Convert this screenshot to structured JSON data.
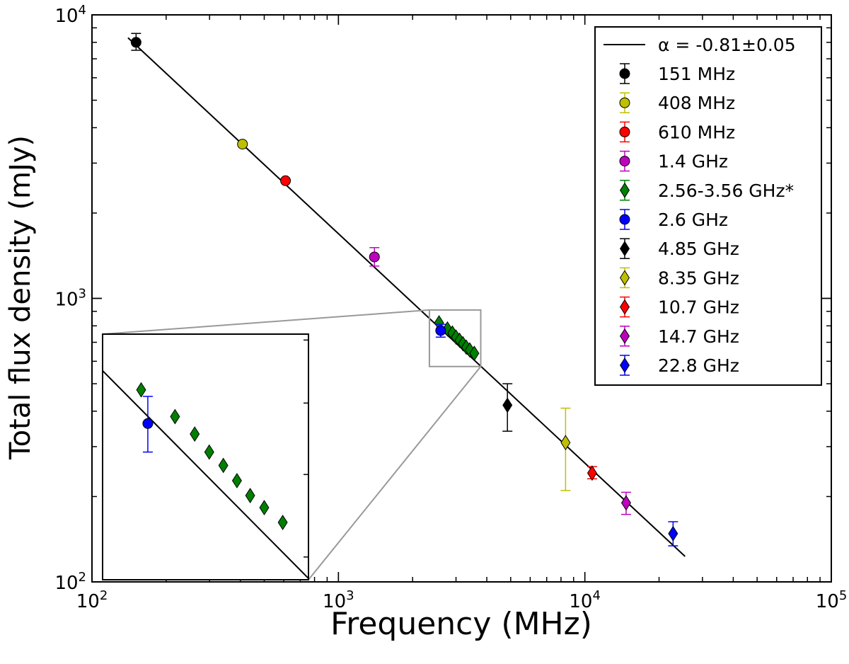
{
  "chart_data": {
    "type": "scatter",
    "xscale": "log",
    "yscale": "log",
    "xlabel": "Frequency (MHz)",
    "ylabel": "Total flux density (mJy)",
    "xlim": [
      100,
      100000
    ],
    "ylim": [
      100,
      10000
    ],
    "x_ticks": [
      {
        "value": 100,
        "base": "10",
        "exp": "2"
      },
      {
        "value": 1000,
        "base": "10",
        "exp": "3"
      },
      {
        "value": 10000,
        "base": "10",
        "exp": "4"
      },
      {
        "value": 100000,
        "base": "10",
        "exp": "5"
      }
    ],
    "y_ticks": [
      {
        "value": 100,
        "base": "10",
        "exp": "2"
      },
      {
        "value": 1000,
        "base": "10",
        "exp": "3"
      },
      {
        "value": 10000,
        "base": "10",
        "exp": "4"
      }
    ],
    "fit": {
      "label": "α = -0.81±0.05",
      "alpha": -0.81,
      "alpha_err": 0.05,
      "color": "#000000",
      "points": [
        [
          140,
          8300
        ],
        [
          25500,
          123
        ]
      ]
    },
    "series": [
      {
        "name": "151 MHz",
        "marker": "circle",
        "color": "#000000",
        "points": [
          {
            "x": 151,
            "y": 8000,
            "lo": 7500,
            "hi": 8600
          }
        ]
      },
      {
        "name": "408 MHz",
        "marker": "circle",
        "color": "#bfbf00",
        "points": [
          {
            "x": 408,
            "y": 3500,
            "lo": 3500,
            "hi": 3500
          }
        ]
      },
      {
        "name": "610 MHz",
        "marker": "circle",
        "color": "#ff0000",
        "points": [
          {
            "x": 610,
            "y": 2600,
            "lo": 2600,
            "hi": 2600
          }
        ]
      },
      {
        "name": "1.4 GHz",
        "marker": "circle",
        "color": "#bf00bf",
        "points": [
          {
            "x": 1400,
            "y": 1400,
            "lo": 1300,
            "hi": 1510
          }
        ]
      },
      {
        "name": "2.56-3.56 GHz*",
        "marker": "diamond",
        "color": "#008000",
        "points": [
          {
            "x": 2560,
            "y": 820
          },
          {
            "x": 2770,
            "y": 780
          },
          {
            "x": 2900,
            "y": 755
          },
          {
            "x": 3000,
            "y": 730
          },
          {
            "x": 3100,
            "y": 712
          },
          {
            "x": 3200,
            "y": 692
          },
          {
            "x": 3300,
            "y": 673
          },
          {
            "x": 3410,
            "y": 658
          },
          {
            "x": 3560,
            "y": 640
          }
        ]
      },
      {
        "name": "2.6 GHz",
        "marker": "circle",
        "color": "#0000ff",
        "points": [
          {
            "x": 2600,
            "y": 770,
            "lo": 730,
            "hi": 810
          }
        ]
      },
      {
        "name": "4.85 GHz",
        "marker": "diamond",
        "color": "#000000",
        "points": [
          {
            "x": 4850,
            "y": 420,
            "lo": 340,
            "hi": 500
          }
        ]
      },
      {
        "name": "8.35 GHz",
        "marker": "diamond",
        "color": "#bfbf00",
        "points": [
          {
            "x": 8350,
            "y": 310,
            "lo": 210,
            "hi": 410
          }
        ]
      },
      {
        "name": "10.7 GHz",
        "marker": "diamond",
        "color": "#ff0000",
        "points": [
          {
            "x": 10700,
            "y": 242,
            "lo": 231,
            "hi": 255
          }
        ]
      },
      {
        "name": "14.7 GHz",
        "marker": "diamond",
        "color": "#bf00bf",
        "points": [
          {
            "x": 14700,
            "y": 190,
            "lo": 173,
            "hi": 207
          }
        ]
      },
      {
        "name": "22.8 GHz",
        "marker": "diamond",
        "color": "#0000ff",
        "points": [
          {
            "x": 22800,
            "y": 148,
            "lo": 134,
            "hi": 163
          }
        ]
      }
    ],
    "inset": {
      "description": "zoom of 2.3-3.8 GHz region",
      "xlim": [
        2340,
        3780
      ],
      "ylim": [
        575,
        910
      ],
      "blue_error": {
        "lo": 730,
        "hi": 810
      }
    },
    "legend_position": "upper-right"
  }
}
